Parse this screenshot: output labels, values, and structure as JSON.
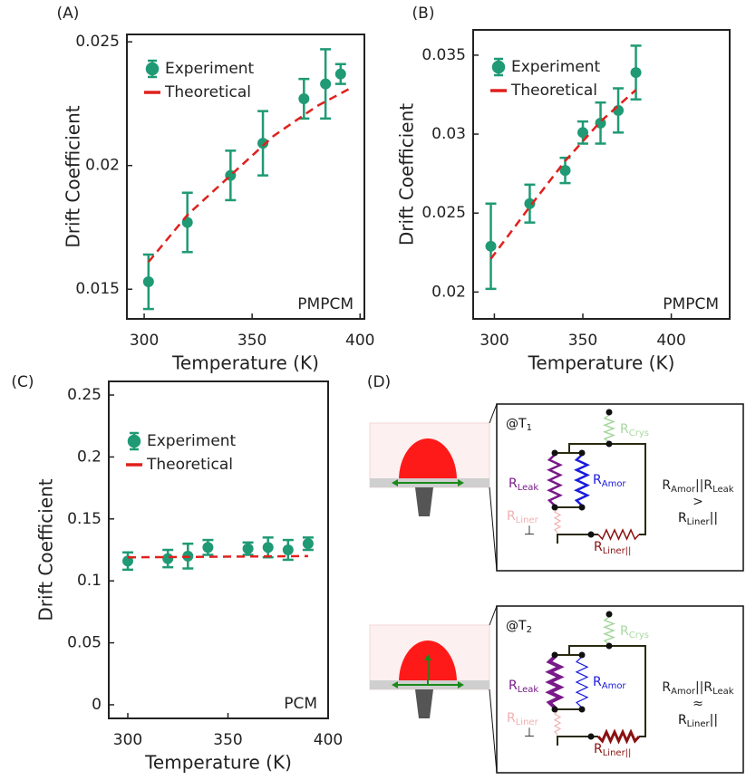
{
  "chart_data": [
    {
      "type": "errorbar",
      "panel_label": "(A)",
      "xlabel": "Temperature (K)",
      "ylabel": "Drift Coefficient",
      "annotation": "PMPCM",
      "legend": "upper left",
      "xlim": [
        292,
        402
      ],
      "xticks": [
        300,
        350,
        400
      ],
      "ylim": [
        0.0138,
        0.0253
      ],
      "yticks": [
        0.015,
        0.02,
        0.025
      ],
      "series": [
        {
          "name": "Experiment",
          "color": "#1f9a74",
          "x": [
            302,
            320,
            340,
            355,
            374,
            384,
            391
          ],
          "values": [
            0.0153,
            0.0177,
            0.0196,
            0.0209,
            0.0227,
            0.0233,
            0.0237
          ],
          "errors": [
            0.0011,
            0.0012,
            0.001,
            0.0013,
            0.0008,
            0.0014,
            0.0004
          ]
        },
        {
          "name": "Theoretical",
          "color": "#e0201c",
          "line_style": "dashed",
          "x": [
            302,
            320,
            340,
            360,
            380,
            395
          ],
          "values": [
            0.0161,
            0.018,
            0.0196,
            0.0212,
            0.0224,
            0.0231
          ]
        }
      ]
    },
    {
      "type": "errorbar",
      "panel_label": "(B)",
      "xlabel": "Temperature (K)",
      "ylabel": "Drift Coefficient",
      "annotation": "PMPCM",
      "legend": "upper left",
      "xlim": [
        288,
        433
      ],
      "xticks": [
        300,
        350,
        400
      ],
      "ylim": [
        0.0183,
        0.0366
      ],
      "yticks": [
        0.02,
        0.025,
        0.03,
        0.035
      ],
      "series": [
        {
          "name": "Experiment",
          "color": "#1f9a74",
          "x": [
            298,
            320,
            340,
            350,
            360,
            370,
            380
          ],
          "values": [
            0.0229,
            0.0256,
            0.0277,
            0.0301,
            0.0307,
            0.0315,
            0.0339
          ],
          "errors": [
            0.0027,
            0.0012,
            0.0008,
            0.0007,
            0.0013,
            0.0014,
            0.0017
          ]
        },
        {
          "name": "Theoretical",
          "color": "#e0201c",
          "line_style": "dashed",
          "x": [
            298,
            320,
            340,
            360,
            380
          ],
          "values": [
            0.0221,
            0.0254,
            0.0283,
            0.0308,
            0.0328
          ]
        }
      ]
    },
    {
      "type": "errorbar",
      "panel_label": "(C)",
      "xlabel": "Temperature (K)",
      "ylabel": "Drift Coefficient",
      "annotation": "PCM",
      "legend": "upper left",
      "xlim": [
        290.5,
        400
      ],
      "xticks": [
        300,
        350,
        400
      ],
      "ylim": [
        -0.011,
        0.261
      ],
      "yticks": [
        0,
        0.05,
        0.1,
        0.15,
        0.2,
        0.25
      ],
      "series": [
        {
          "name": "Experiment",
          "color": "#1f9a74",
          "x": [
            300,
            320,
            330,
            340,
            360,
            370,
            380,
            390
          ],
          "values": [
            0.116,
            0.118,
            0.12,
            0.127,
            0.126,
            0.127,
            0.125,
            0.13
          ],
          "errors": [
            0.007,
            0.007,
            0.01,
            0.006,
            0.005,
            0.008,
            0.008,
            0.005
          ]
        },
        {
          "name": "Theoretical",
          "color": "#e0201c",
          "line_style": "dashed",
          "x": [
            300,
            390
          ],
          "values": [
            0.119,
            0.12
          ]
        }
      ]
    }
  ],
  "diagram": {
    "panel_label": "(D)",
    "circuits": [
      {
        "temperature": {
          "text": "@T",
          "sub": "1"
        },
        "crys": {
          "text": "R",
          "sub": "Crys"
        },
        "leak": {
          "text": "R",
          "sub": "Leak"
        },
        "amor": {
          "text": "R",
          "sub": "Amor"
        },
        "liner_perp": {
          "text": "R",
          "sub": "Liner",
          "below": "⊥"
        },
        "liner_par": {
          "text": "R",
          "sub": "Liner||"
        },
        "relation": {
          "a": {
            "text": "R",
            "sub": "Amor"
          },
          "b": {
            "text": "||R",
            "sub": "Leak"
          },
          "op": ">",
          "c": {
            "text": "R",
            "sub": "Liner",
            "after": "||"
          }
        }
      },
      {
        "temperature": {
          "text": "@T",
          "sub": "2"
        },
        "crys": {
          "text": "R",
          "sub": "Crys"
        },
        "leak": {
          "text": "R",
          "sub": "Leak"
        },
        "amor": {
          "text": "R",
          "sub": "Amor"
        },
        "liner_perp": {
          "text": "R",
          "sub": "Liner",
          "below": "⊥"
        },
        "liner_par": {
          "text": "R",
          "sub": "Liner||"
        },
        "relation": {
          "a": {
            "text": "R",
            "sub": "Amor"
          },
          "b": {
            "text": "||R",
            "sub": "Leak"
          },
          "op": "≈",
          "c": {
            "text": "R",
            "sub": "Liner",
            "after": "||"
          }
        }
      }
    ]
  }
}
